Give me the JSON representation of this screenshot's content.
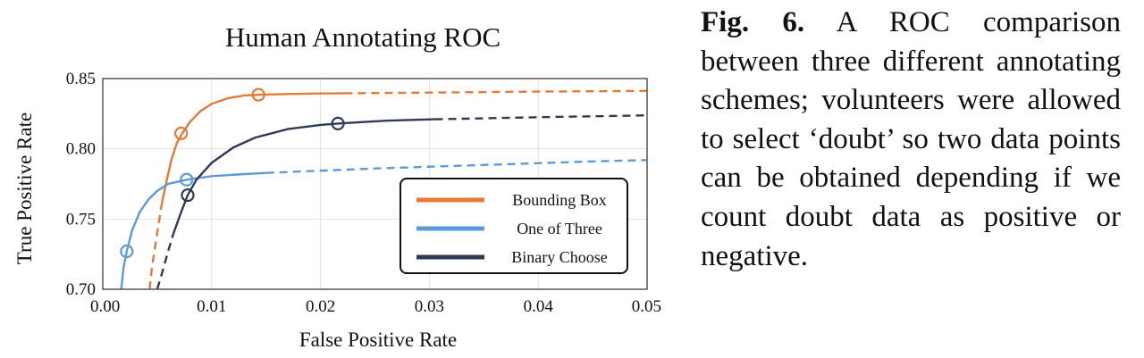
{
  "chart_data": {
    "type": "line",
    "title": "Human Annotating ROC",
    "xlabel": "False Positive Rate",
    "ylabel": "True Positive Rate",
    "xlim": [
      0,
      0.05
    ],
    "ylim": [
      0.7,
      0.85
    ],
    "xticks": [
      "0.00",
      "0.01",
      "0.02",
      "0.03",
      "0.04",
      "0.05"
    ],
    "yticks": [
      "0.70",
      "0.75",
      "0.80",
      "0.85"
    ],
    "grid": true,
    "legend_position": "bottom-right",
    "series": [
      {
        "name": "Bounding Box",
        "color": "#e07b39",
        "solid": [
          [
            0.0054,
            0.76
          ],
          [
            0.0058,
            0.775
          ],
          [
            0.0063,
            0.792
          ],
          [
            0.0068,
            0.804
          ],
          [
            0.0073,
            0.811
          ],
          [
            0.008,
            0.819
          ],
          [
            0.009,
            0.827
          ],
          [
            0.01,
            0.832
          ],
          [
            0.0115,
            0.836
          ],
          [
            0.013,
            0.838
          ],
          [
            0.0145,
            0.8385
          ],
          [
            0.017,
            0.839
          ],
          [
            0.02,
            0.8394
          ],
          [
            0.0222,
            0.8395
          ]
        ],
        "dashed": [
          [
            0.0043,
            0.7
          ],
          [
            0.0045,
            0.715
          ],
          [
            0.0048,
            0.73
          ],
          [
            0.0051,
            0.745
          ],
          [
            0.0054,
            0.76
          ]
        ],
        "dashed_tail": [
          [
            0.0222,
            0.8395
          ],
          [
            0.03,
            0.84
          ],
          [
            0.04,
            0.8407
          ],
          [
            0.05,
            0.8412
          ]
        ],
        "markers": [
          [
            0.0072,
            0.811
          ],
          [
            0.0143,
            0.8385
          ]
        ]
      },
      {
        "name": "One of Three",
        "color": "#5b9bd5",
        "solid": [
          [
            0.0017,
            0.7
          ],
          [
            0.0019,
            0.715
          ],
          [
            0.0022,
            0.727
          ],
          [
            0.0027,
            0.742
          ],
          [
            0.0034,
            0.755
          ],
          [
            0.0042,
            0.764
          ],
          [
            0.005,
            0.77
          ],
          [
            0.006,
            0.775
          ],
          [
            0.0077,
            0.778
          ],
          [
            0.01,
            0.7805
          ],
          [
            0.013,
            0.782
          ],
          [
            0.015,
            0.7828
          ]
        ],
        "dashed": [],
        "dashed_tail": [
          [
            0.015,
            0.7828
          ],
          [
            0.025,
            0.786
          ],
          [
            0.035,
            0.7885
          ],
          [
            0.045,
            0.791
          ],
          [
            0.05,
            0.792
          ]
        ],
        "markers": [
          [
            0.0022,
            0.727
          ],
          [
            0.0077,
            0.778
          ]
        ]
      },
      {
        "name": "Binary Choose",
        "color": "#2e3a55",
        "solid": [
          [
            0.0065,
            0.74
          ],
          [
            0.0072,
            0.755
          ],
          [
            0.0078,
            0.767
          ],
          [
            0.0086,
            0.778
          ],
          [
            0.01,
            0.79
          ],
          [
            0.012,
            0.801
          ],
          [
            0.014,
            0.808
          ],
          [
            0.017,
            0.814
          ],
          [
            0.02,
            0.817
          ],
          [
            0.0217,
            0.818
          ],
          [
            0.026,
            0.82
          ],
          [
            0.0305,
            0.821
          ]
        ],
        "dashed": [
          [
            0.005,
            0.7
          ],
          [
            0.0055,
            0.713
          ],
          [
            0.006,
            0.727
          ],
          [
            0.0065,
            0.74
          ]
        ],
        "dashed_tail": [
          [
            0.0305,
            0.821
          ],
          [
            0.04,
            0.8225
          ],
          [
            0.05,
            0.8238
          ]
        ],
        "markers": [
          [
            0.0078,
            0.767
          ],
          [
            0.0216,
            0.818
          ]
        ]
      }
    ]
  },
  "caption": {
    "fig_label": "Fig. 6.",
    "text": "A ROC comparison between three different annotating schemes; volunteers were allowed to select ‘doubt’ so two data points can be obtained depending if we count doubt data as positive or negative."
  }
}
